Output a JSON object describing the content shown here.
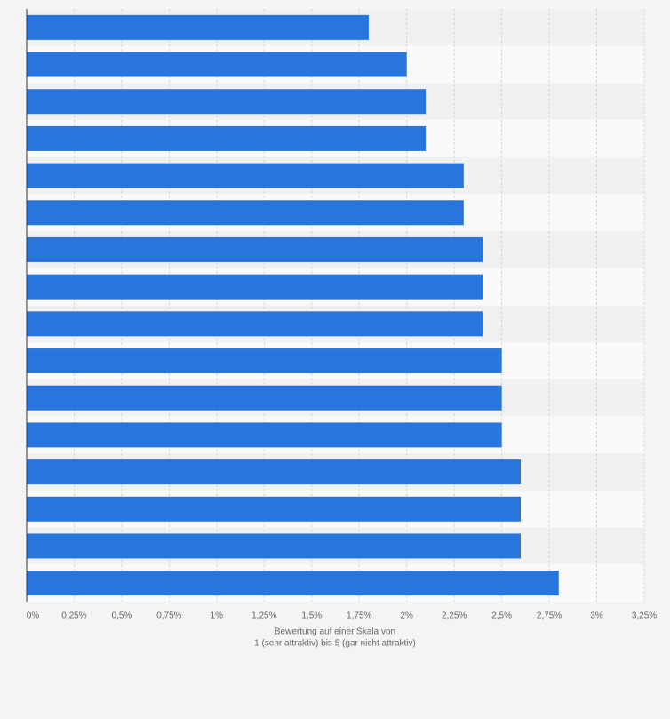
{
  "chart_data": {
    "type": "bar",
    "orientation": "horizontal",
    "categories": [
      null,
      null,
      null,
      null,
      null,
      null,
      null,
      null,
      null,
      null,
      null,
      null,
      null,
      null,
      null,
      null
    ],
    "values": [
      1.8,
      2.0,
      2.1,
      2.1,
      2.3,
      2.3,
      2.4,
      2.4,
      2.4,
      2.5,
      2.5,
      2.5,
      2.6,
      2.6,
      2.6,
      2.8
    ],
    "color": "#2876dd",
    "xlim": [
      0,
      3.25
    ],
    "xticks": [
      {
        "value": 0,
        "label": "0%"
      },
      {
        "value": 0.25,
        "label": "0,25%"
      },
      {
        "value": 0.5,
        "label": "0,5%"
      },
      {
        "value": 0.75,
        "label": "0,75%"
      },
      {
        "value": 1,
        "label": "1%"
      },
      {
        "value": 1.25,
        "label": "1,25%"
      },
      {
        "value": 1.5,
        "label": "1,5%"
      },
      {
        "value": 1.75,
        "label": "1,75%"
      },
      {
        "value": 2,
        "label": "2%"
      },
      {
        "value": 2.25,
        "label": "2,25%"
      },
      {
        "value": 2.5,
        "label": "2,5%"
      },
      {
        "value": 2.75,
        "label": "2,75%"
      },
      {
        "value": 3,
        "label": "3%"
      },
      {
        "value": 3.25,
        "label": "3,25%"
      }
    ],
    "xlabel": [
      "Bewertung auf einer Skala von",
      "1 (sehr attraktiv) bis 5 (gar nicht attraktiv)"
    ],
    "grid": true
  }
}
